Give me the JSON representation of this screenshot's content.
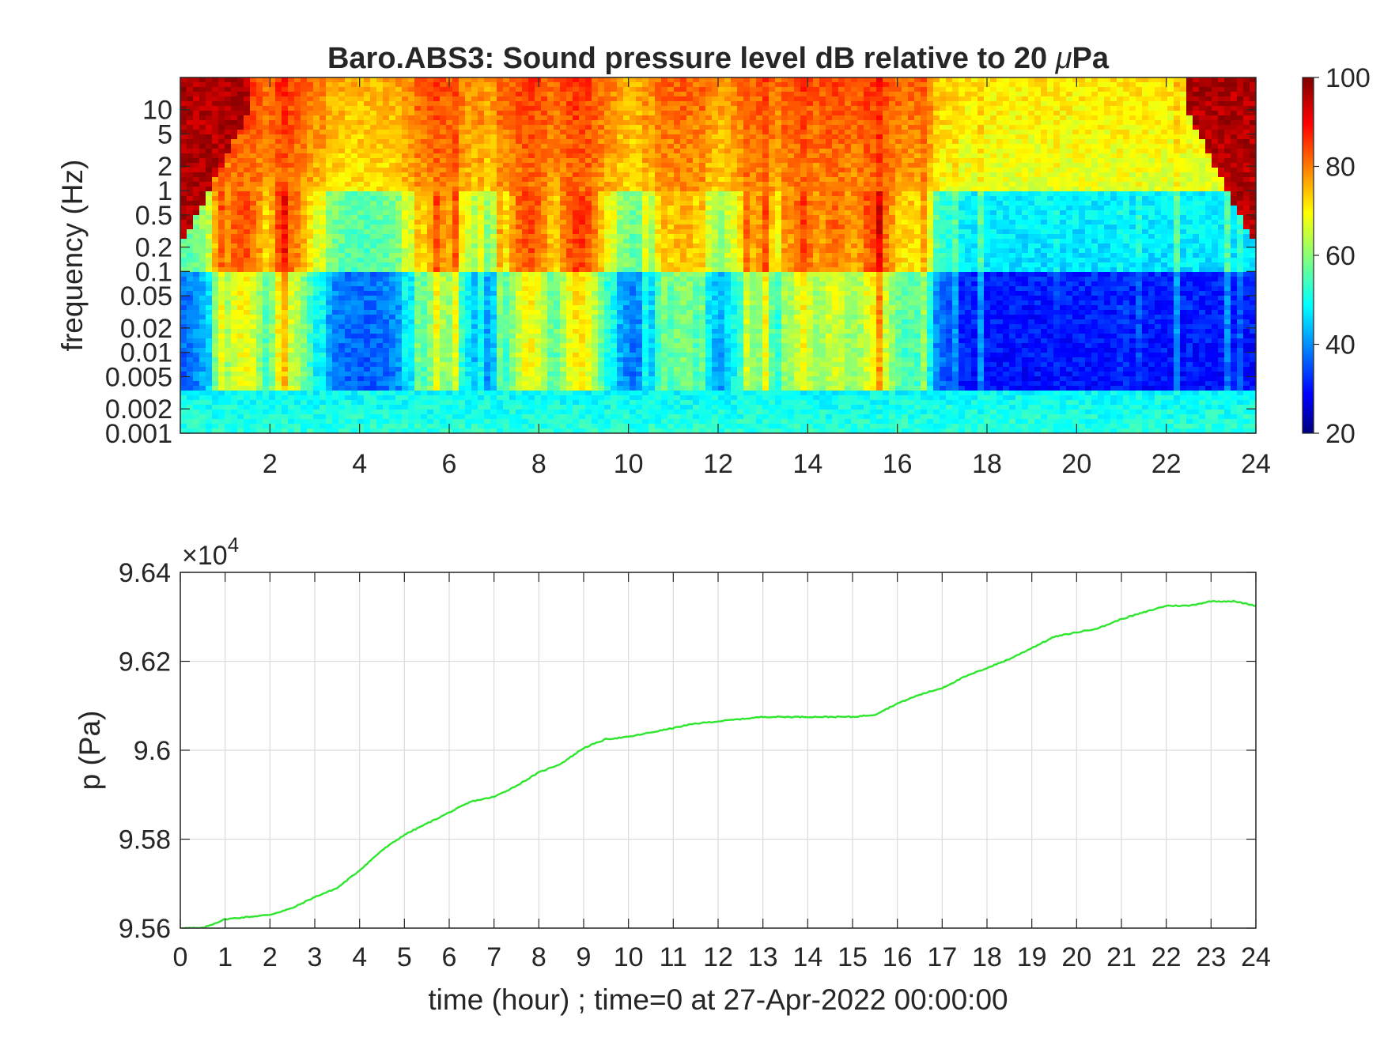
{
  "chart_data": [
    {
      "type": "heatmap",
      "title": "Baro.ABS3: Sound pressure level dB relative to 20 μPa",
      "title_prefix": "Baro.ABS3: Sound pressure level dB relative to 20 ",
      "title_symbol": "μ",
      "title_suffix": "Pa",
      "ylabel": "frequency (Hz)",
      "y_scale": "log",
      "ylim": [
        0.001,
        25
      ],
      "xlim": [
        0,
        24
      ],
      "xticks": [
        "2",
        "4",
        "6",
        "8",
        "10",
        "12",
        "14",
        "16",
        "18",
        "20",
        "22",
        "24"
      ],
      "yticks": [
        "0.001",
        "0.002",
        "0.005",
        "0.01",
        "0.02",
        "0.05",
        "0.1",
        "0.2",
        "0.5",
        "1",
        "2",
        "5",
        "10"
      ],
      "colormap": "jet",
      "colorbar": {
        "range": [
          20,
          100
        ],
        "ticks": [
          "20",
          "40",
          "60",
          "80",
          "100"
        ]
      }
    },
    {
      "type": "line",
      "ylabel": "p (Pa)",
      "xlabel": "time (hour) ; time=0 at 27-Apr-2022 00:00:00",
      "y_multiplier_prefix": "×10",
      "y_multiplier_exp": "4",
      "xlim": [
        0,
        24
      ],
      "ylim": [
        95600,
        96400
      ],
      "xticks": [
        "0",
        "1",
        "2",
        "3",
        "4",
        "5",
        "6",
        "7",
        "8",
        "9",
        "10",
        "11",
        "12",
        "13",
        "14",
        "15",
        "16",
        "17",
        "18",
        "19",
        "20",
        "21",
        "22",
        "23",
        "24"
      ],
      "yticks": [
        "9.56",
        "9.58",
        "9.6",
        "9.62",
        "9.64"
      ],
      "grid": true,
      "line_color": "#2ee62e",
      "series": [
        {
          "x": [
            0,
            0.5,
            1,
            1.5,
            2,
            2.5,
            3,
            3.5,
            4,
            4.5,
            5,
            5.5,
            6,
            6.5,
            7,
            7.5,
            8,
            8.5,
            9,
            9.5,
            10,
            10.5,
            11,
            11.5,
            12,
            12.5,
            13,
            13.5,
            14,
            14.5,
            15,
            15.5,
            16,
            16.5,
            17,
            17.5,
            18,
            18.5,
            19,
            19.5,
            20,
            20.5,
            21,
            21.5,
            22,
            22.5,
            23,
            23.5,
            24
          ],
          "y": [
            95600,
            95600,
            95620,
            95625,
            95630,
            95645,
            95670,
            95690,
            95730,
            95775,
            95810,
            95835,
            95860,
            95885,
            95895,
            95920,
            95950,
            95970,
            96005,
            96025,
            96030,
            96040,
            96050,
            96060,
            96065,
            96070,
            96075,
            96075,
            96075,
            96075,
            96075,
            96080,
            96105,
            96125,
            96140,
            96165,
            96185,
            96205,
            96230,
            96255,
            96265,
            96275,
            96295,
            96310,
            96325,
            96325,
            96335,
            96335,
            96325
          ]
        }
      ]
    }
  ]
}
